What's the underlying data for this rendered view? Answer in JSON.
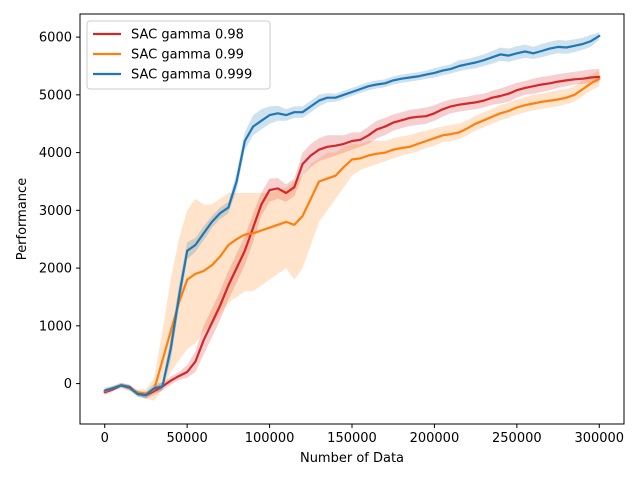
{
  "chart_data": {
    "type": "line",
    "title": "",
    "xlabel": "Number of Data",
    "ylabel": "Performance",
    "xlim": [
      -15000,
      315000
    ],
    "ylim": [
      -700,
      6400
    ],
    "xticks": [
      0,
      50000,
      100000,
      150000,
      200000,
      250000,
      300000
    ],
    "xtick_labels": [
      "0",
      "50000",
      "100000",
      "150000",
      "200000",
      "250000",
      "300000"
    ],
    "yticks": [
      0,
      1000,
      2000,
      3000,
      4000,
      5000,
      6000
    ],
    "ytick_labels": [
      "0",
      "1000",
      "2000",
      "3000",
      "4000",
      "5000",
      "6000"
    ],
    "grid": false,
    "legend": "top-left",
    "series": [
      {
        "name": "SAC gamma 0.98",
        "color": "#d62728",
        "x": [
          0,
          5000,
          10000,
          15000,
          20000,
          25000,
          30000,
          35000,
          40000,
          45000,
          50000,
          55000,
          60000,
          65000,
          70000,
          75000,
          80000,
          85000,
          90000,
          95000,
          100000,
          105000,
          110000,
          115000,
          120000,
          125000,
          130000,
          135000,
          140000,
          145000,
          150000,
          155000,
          160000,
          165000,
          170000,
          175000,
          180000,
          185000,
          190000,
          195000,
          200000,
          205000,
          210000,
          215000,
          220000,
          225000,
          230000,
          235000,
          240000,
          245000,
          250000,
          255000,
          260000,
          265000,
          270000,
          275000,
          280000,
          285000,
          290000,
          295000,
          300000
        ],
        "y": [
          -150,
          -100,
          -30,
          -60,
          -180,
          -200,
          -130,
          -50,
          50,
          130,
          200,
          380,
          750,
          1050,
          1350,
          1700,
          2000,
          2300,
          2700,
          3100,
          3350,
          3380,
          3300,
          3400,
          3800,
          3950,
          4050,
          4100,
          4120,
          4150,
          4200,
          4220,
          4300,
          4400,
          4450,
          4520,
          4560,
          4600,
          4620,
          4630,
          4680,
          4750,
          4800,
          4830,
          4850,
          4870,
          4900,
          4950,
          4980,
          5020,
          5080,
          5120,
          5150,
          5180,
          5200,
          5230,
          5250,
          5270,
          5280,
          5300,
          5310
        ],
        "lower": [
          -200,
          -130,
          -60,
          -100,
          -220,
          -260,
          -200,
          -120,
          -20,
          60,
          100,
          200,
          500,
          800,
          1100,
          1450,
          1750,
          2050,
          2450,
          2900,
          3150,
          3200,
          3150,
          3250,
          3600,
          3750,
          3850,
          3900,
          3950,
          4000,
          4050,
          4100,
          4150,
          4250,
          4300,
          4380,
          4420,
          4460,
          4480,
          4500,
          4550,
          4620,
          4680,
          4710,
          4730,
          4750,
          4780,
          4830,
          4850,
          4880,
          4950,
          5000,
          5020,
          5050,
          5080,
          5120,
          5150,
          5180,
          5190,
          5200,
          5220
        ],
        "upper": [
          -100,
          -70,
          0,
          -20,
          -140,
          -140,
          -60,
          20,
          120,
          200,
          320,
          560,
          1000,
          1300,
          1600,
          1950,
          2250,
          2550,
          2950,
          3300,
          3550,
          3560,
          3450,
          3550,
          4000,
          4150,
          4250,
          4300,
          4300,
          4300,
          4350,
          4350,
          4450,
          4550,
          4600,
          4660,
          4700,
          4740,
          4760,
          4780,
          4820,
          4880,
          4920,
          4950,
          4970,
          5000,
          5020,
          5070,
          5110,
          5160,
          5210,
          5240,
          5280,
          5310,
          5330,
          5360,
          5380,
          5400,
          5420,
          5440,
          5450
        ]
      },
      {
        "name": "SAC gamma 0.99",
        "color": "#ff7f0e",
        "x": [
          0,
          5000,
          10000,
          15000,
          20000,
          25000,
          30000,
          35000,
          40000,
          45000,
          50000,
          55000,
          60000,
          65000,
          70000,
          75000,
          80000,
          85000,
          90000,
          95000,
          100000,
          105000,
          110000,
          115000,
          120000,
          125000,
          130000,
          135000,
          140000,
          145000,
          150000,
          155000,
          160000,
          165000,
          170000,
          175000,
          180000,
          185000,
          190000,
          195000,
          200000,
          205000,
          210000,
          215000,
          220000,
          225000,
          230000,
          235000,
          240000,
          245000,
          250000,
          255000,
          260000,
          265000,
          270000,
          275000,
          280000,
          285000,
          290000,
          295000,
          300000
        ],
        "y": [
          -130,
          -80,
          -30,
          -80,
          -150,
          -180,
          -100,
          400,
          900,
          1400,
          1800,
          1900,
          1950,
          2050,
          2200,
          2400,
          2500,
          2580,
          2600,
          2650,
          2700,
          2750,
          2800,
          2750,
          2900,
          3200,
          3500,
          3550,
          3600,
          3750,
          3880,
          3900,
          3950,
          3980,
          4000,
          4050,
          4080,
          4100,
          4150,
          4200,
          4250,
          4300,
          4320,
          4350,
          4420,
          4500,
          4560,
          4620,
          4680,
          4720,
          4780,
          4820,
          4850,
          4880,
          4900,
          4920,
          4950,
          5000,
          5100,
          5200,
          5280
        ],
        "lower": [
          -180,
          -120,
          -80,
          -130,
          -200,
          -260,
          -300,
          -100,
          200,
          400,
          600,
          700,
          900,
          1000,
          1200,
          1400,
          1500,
          1600,
          1600,
          1700,
          1800,
          1900,
          2000,
          1800,
          2000,
          2400,
          2800,
          3000,
          3200,
          3400,
          3600,
          3700,
          3750,
          3800,
          3850,
          3900,
          3950,
          3980,
          4020,
          4080,
          4120,
          4180,
          4200,
          4230,
          4300,
          4380,
          4440,
          4500,
          4560,
          4600,
          4660,
          4700,
          4730,
          4760,
          4780,
          4800,
          4840,
          4880,
          4980,
          5080,
          5150
        ],
        "upper": [
          -80,
          -40,
          20,
          -30,
          -100,
          -100,
          100,
          900,
          1800,
          2500,
          3000,
          3200,
          3100,
          3100,
          3200,
          3300,
          3300,
          3300,
          3300,
          3300,
          3300,
          3350,
          3400,
          3500,
          3600,
          3800,
          3900,
          4000,
          4000,
          4100,
          4150,
          4150,
          4200,
          4200,
          4200,
          4250,
          4280,
          4300,
          4350,
          4380,
          4420,
          4450,
          4480,
          4500,
          4560,
          4640,
          4700,
          4760,
          4820,
          4860,
          4920,
          4960,
          5000,
          5020,
          5050,
          5080,
          5100,
          5150,
          5250,
          5350,
          5420
        ]
      },
      {
        "name": "SAC gamma 0.999",
        "color": "#1f77b4",
        "x": [
          0,
          5000,
          10000,
          15000,
          20000,
          25000,
          30000,
          35000,
          40000,
          45000,
          50000,
          55000,
          60000,
          65000,
          70000,
          75000,
          80000,
          85000,
          90000,
          95000,
          100000,
          105000,
          110000,
          115000,
          120000,
          125000,
          130000,
          135000,
          140000,
          145000,
          150000,
          155000,
          160000,
          165000,
          170000,
          175000,
          180000,
          185000,
          190000,
          195000,
          200000,
          205000,
          210000,
          215000,
          220000,
          225000,
          230000,
          235000,
          240000,
          245000,
          250000,
          255000,
          260000,
          265000,
          270000,
          275000,
          280000,
          285000,
          290000,
          295000,
          300000
        ],
        "y": [
          -120,
          -80,
          -30,
          -70,
          -180,
          -200,
          -80,
          -50,
          600,
          1500,
          2300,
          2400,
          2600,
          2800,
          2950,
          3050,
          3500,
          4200,
          4450,
          4550,
          4650,
          4680,
          4650,
          4700,
          4700,
          4800,
          4900,
          4950,
          4950,
          5000,
          5050,
          5100,
          5150,
          5180,
          5200,
          5250,
          5280,
          5300,
          5320,
          5350,
          5380,
          5420,
          5450,
          5500,
          5530,
          5560,
          5600,
          5650,
          5700,
          5680,
          5720,
          5750,
          5720,
          5760,
          5800,
          5830,
          5820,
          5850,
          5880,
          5930,
          6020
        ],
        "lower": [
          -170,
          -120,
          -70,
          -120,
          -230,
          -260,
          -160,
          -120,
          400,
          1300,
          2150,
          2280,
          2480,
          2700,
          2850,
          2950,
          3350,
          4050,
          4300,
          4400,
          4500,
          4550,
          4550,
          4600,
          4600,
          4700,
          4800,
          4870,
          4880,
          4930,
          4980,
          5030,
          5080,
          5110,
          5130,
          5180,
          5210,
          5230,
          5250,
          5280,
          5300,
          5340,
          5370,
          5410,
          5440,
          5460,
          5500,
          5540,
          5590,
          5570,
          5610,
          5640,
          5620,
          5650,
          5690,
          5720,
          5710,
          5740,
          5780,
          5830,
          5960
        ],
        "upper": [
          -70,
          -40,
          10,
          -20,
          -130,
          -140,
          0,
          20,
          800,
          1700,
          2450,
          2520,
          2720,
          2900,
          3050,
          3150,
          3650,
          4350,
          4650,
          4750,
          4800,
          4810,
          4750,
          4800,
          4800,
          4900,
          5000,
          5030,
          5020,
          5070,
          5120,
          5170,
          5220,
          5250,
          5270,
          5320,
          5350,
          5370,
          5390,
          5420,
          5460,
          5500,
          5530,
          5600,
          5620,
          5660,
          5700,
          5760,
          5820,
          5800,
          5840,
          5870,
          5830,
          5880,
          5920,
          5950,
          5940,
          5960,
          5990,
          6040,
          6080
        ]
      }
    ]
  }
}
